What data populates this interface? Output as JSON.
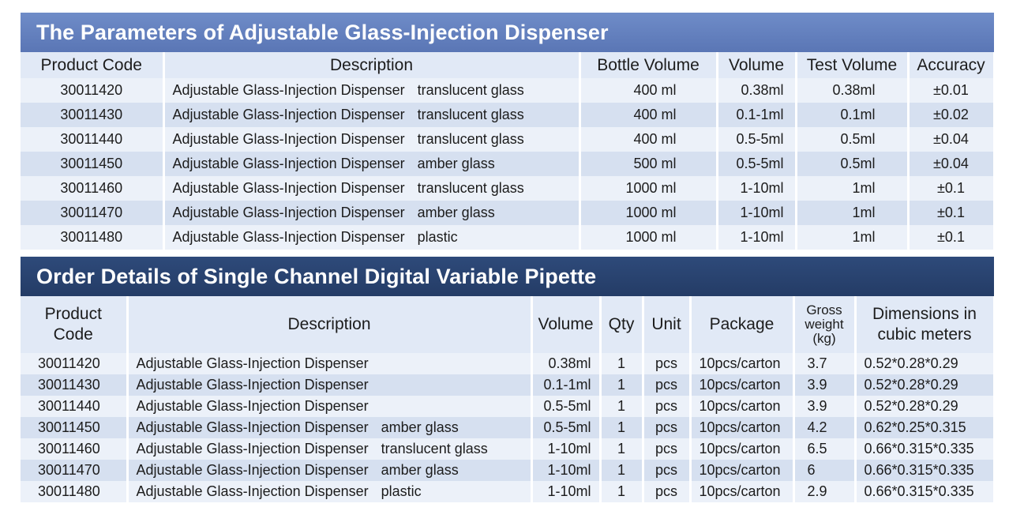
{
  "table1": {
    "title": "The Parameters of Adjustable Glass-Injection Dispenser",
    "headers": [
      "Product Code",
      "Description",
      "Bottle Volume",
      "Volume",
      "Test Volume",
      "Accuracy"
    ],
    "rows": [
      {
        "code": "30011420",
        "desc": "Adjustable Glass-Injection Dispenser",
        "material": "translucent glass",
        "bottle": "400 ml",
        "volume": "0.38ml",
        "test": "0.38ml",
        "accuracy": "±0.01"
      },
      {
        "code": "30011430",
        "desc": "Adjustable Glass-Injection Dispenser",
        "material": "translucent glass",
        "bottle": "400 ml",
        "volume": "0.1-1ml",
        "test": "0.1ml",
        "accuracy": "±0.02"
      },
      {
        "code": "30011440",
        "desc": "Adjustable Glass-Injection Dispenser",
        "material": "translucent glass",
        "bottle": "400 ml",
        "volume": "0.5-5ml",
        "test": "0.5ml",
        "accuracy": "±0.04"
      },
      {
        "code": "30011450",
        "desc": "Adjustable Glass-Injection Dispenser",
        "material": "amber glass",
        "bottle": "500 ml",
        "volume": "0.5-5ml",
        "test": "0.5ml",
        "accuracy": "±0.04"
      },
      {
        "code": "30011460",
        "desc": "Adjustable Glass-Injection Dispenser",
        "material": "translucent glass",
        "bottle": "1000 ml",
        "volume": "1-10ml",
        "test": "1ml",
        "accuracy": "±0.1"
      },
      {
        "code": "30011470",
        "desc": "Adjustable Glass-Injection Dispenser",
        "material": "amber glass",
        "bottle": "1000 ml",
        "volume": "1-10ml",
        "test": "1ml",
        "accuracy": "±0.1"
      },
      {
        "code": "30011480",
        "desc": "Adjustable Glass-Injection Dispenser",
        "material": "plastic",
        "bottle": "1000 ml",
        "volume": "1-10ml",
        "test": "1ml",
        "accuracy": "±0.1"
      }
    ]
  },
  "table2": {
    "title": "Order Details of Single Channel Digital Variable Pipette",
    "headers": {
      "code_line1": "Product",
      "code_line2": "Code",
      "description": "Description",
      "volume": "Volume",
      "qty": "Qty",
      "unit": "Unit",
      "package": "Package",
      "gw_line1": "Gross",
      "gw_line2": "weight",
      "gw_line3": "(kg)",
      "dim_line1": "Dimensions in",
      "dim_line2": "cubic meters"
    },
    "rows": [
      {
        "code": "30011420",
        "desc": "Adjustable Glass-Injection Dispenser",
        "material": "",
        "volume": "0.38ml",
        "qty": "1",
        "unit": "pcs",
        "package": "10pcs/carton",
        "gross": "3.7",
        "dims": "0.52*0.28*0.29"
      },
      {
        "code": "30011430",
        "desc": "Adjustable Glass-Injection Dispenser",
        "material": "",
        "volume": "0.1-1ml",
        "qty": "1",
        "unit": "pcs",
        "package": "10pcs/carton",
        "gross": "3.9",
        "dims": "0.52*0.28*0.29"
      },
      {
        "code": "30011440",
        "desc": "Adjustable Glass-Injection Dispenser",
        "material": "",
        "volume": "0.5-5ml",
        "qty": "1",
        "unit": "pcs",
        "package": "10pcs/carton",
        "gross": "3.9",
        "dims": "0.52*0.28*0.29"
      },
      {
        "code": "30011450",
        "desc": "Adjustable Glass-Injection Dispenser",
        "material": "amber glass",
        "volume": "0.5-5ml",
        "qty": "1",
        "unit": "pcs",
        "package": "10pcs/carton",
        "gross": "4.2",
        "dims": "0.62*0.25*0.315"
      },
      {
        "code": "30011460",
        "desc": "Adjustable Glass-Injection Dispenser",
        "material": "translucent glass",
        "volume": "1-10ml",
        "qty": "1",
        "unit": "pcs",
        "package": "10pcs/carton",
        "gross": "6.5",
        "dims": "0.66*0.315*0.335"
      },
      {
        "code": "30011470",
        "desc": "Adjustable Glass-Injection Dispenser",
        "material": "amber glass",
        "volume": "1-10ml",
        "qty": "1",
        "unit": "pcs",
        "package": "10pcs/carton",
        "gross": "6",
        "dims": "0.66*0.315*0.335"
      },
      {
        "code": "30011480",
        "desc": "Adjustable Glass-Injection Dispenser",
        "material": "plastic",
        "volume": "1-10ml",
        "qty": "1",
        "unit": "pcs",
        "package": "10pcs/carton",
        "gross": "2.9",
        "dims": "0.66*0.315*0.335"
      }
    ]
  },
  "colors": {
    "banner1": "#6f8cc8",
    "banner2": "#2e4a7a",
    "header_bg": "#e1e9f6",
    "row_light": "#ecf1f9",
    "row_dark": "#d6e0f0"
  }
}
